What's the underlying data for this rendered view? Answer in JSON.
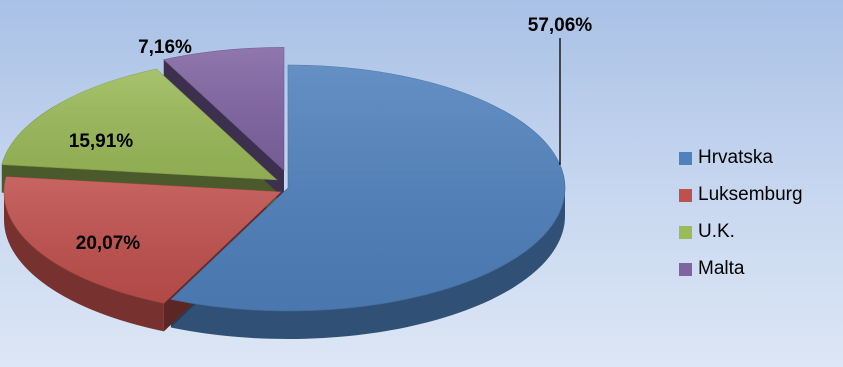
{
  "chart_data": {
    "type": "pie",
    "style": "3d-exploded",
    "categories": [
      "Hrvatska",
      "Luksemburg",
      "U.K.",
      "Malta"
    ],
    "values": [
      57.06,
      20.07,
      15.91,
      7.16
    ],
    "data_labels": [
      "57,06%",
      "20,07%",
      "15,91%",
      "7,16%"
    ],
    "colors": [
      "#4f81bd",
      "#c0504d",
      "#9bbb59",
      "#8064a2"
    ],
    "legend": {
      "position": "right",
      "entries": [
        "Hrvatska",
        "Luksemburg",
        "U.K.",
        "Malta"
      ]
    }
  }
}
